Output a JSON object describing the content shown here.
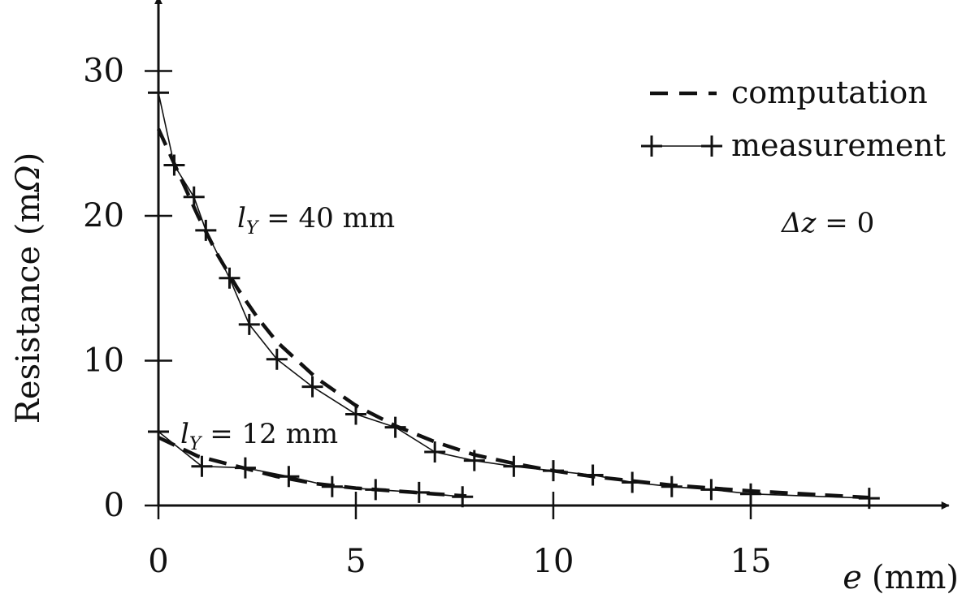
{
  "chart_data": {
    "type": "line",
    "title": "",
    "xlabel": {
      "symbol": "e",
      "unit": "(mm)"
    },
    "ylabel": {
      "text": "Resistance (m",
      "symbol": "Ω",
      "close": ")"
    },
    "xlim": [
      0,
      19.5
    ],
    "ylim": [
      0,
      34
    ],
    "xticks": [
      0,
      5,
      10,
      15
    ],
    "xtick_labels": [
      "0",
      "5",
      "10",
      "15"
    ],
    "yticks": [
      0,
      10,
      20,
      30
    ],
    "ytick_labels": [
      "0",
      "10",
      "20",
      "30"
    ],
    "grid": false,
    "legend": {
      "position": "top-right",
      "entries": [
        {
          "label": "computation",
          "style": "dashed"
        },
        {
          "label": "measurement",
          "style": "solid-plus"
        }
      ]
    },
    "annotations": [
      {
        "id": "ly40",
        "symbol": "l",
        "subscript": "Y",
        "rest": " = 40 mm",
        "at": [
          2.5,
          19.8
        ]
      },
      {
        "id": "ly12",
        "symbol": "l",
        "subscript": "Y",
        "rest": " = 12 mm",
        "at": [
          0.4,
          4.4
        ]
      },
      {
        "id": "dz",
        "symbol": "Δz",
        "rest": " = 0",
        "at": [
          15.8,
          19.1
        ]
      }
    ],
    "series": [
      {
        "name": "computation",
        "group": "lY = 40 mm",
        "style": "dashed",
        "x": [
          0,
          0.5,
          1,
          1.5,
          2,
          2.5,
          3,
          4,
          5,
          6,
          7,
          8,
          9,
          10,
          11,
          12,
          13,
          14,
          15,
          16,
          17,
          18
        ],
        "y": [
          26.0,
          23.0,
          20.0,
          17.3,
          15.0,
          13.0,
          11.3,
          8.8,
          6.9,
          5.5,
          4.4,
          3.5,
          2.9,
          2.4,
          2.0,
          1.7,
          1.4,
          1.2,
          1.0,
          0.85,
          0.7,
          0.55
        ]
      },
      {
        "name": "measurement",
        "group": "lY = 40 mm",
        "style": "solid-plus",
        "x": [
          0,
          0.4,
          0.9,
          1.2,
          1.8,
          2.3,
          3.0,
          3.9,
          5.0,
          6.0,
          7.0,
          8.0,
          9.0,
          10.0,
          11.0,
          12.0,
          13.0,
          14.0,
          15.0,
          18.0
        ],
        "y": [
          28.5,
          23.5,
          21.3,
          19.0,
          15.7,
          12.5,
          10.1,
          8.2,
          6.3,
          5.4,
          3.7,
          3.1,
          2.7,
          2.4,
          2.1,
          1.6,
          1.3,
          1.1,
          0.8,
          0.5
        ]
      },
      {
        "name": "computation",
        "group": "lY = 12 mm",
        "style": "dashed",
        "x": [
          0,
          1,
          2,
          3,
          4,
          5,
          6,
          7,
          7.8
        ],
        "y": [
          4.7,
          3.4,
          2.7,
          2.0,
          1.5,
          1.2,
          1.0,
          0.8,
          0.65
        ]
      },
      {
        "name": "measurement",
        "group": "lY = 12 mm",
        "style": "solid-plus",
        "x": [
          0,
          1.1,
          2.2,
          3.3,
          4.4,
          5.5,
          6.6,
          7.7
        ],
        "y": [
          5.1,
          2.7,
          2.6,
          2.0,
          1.3,
          1.1,
          0.9,
          0.6
        ]
      }
    ]
  }
}
